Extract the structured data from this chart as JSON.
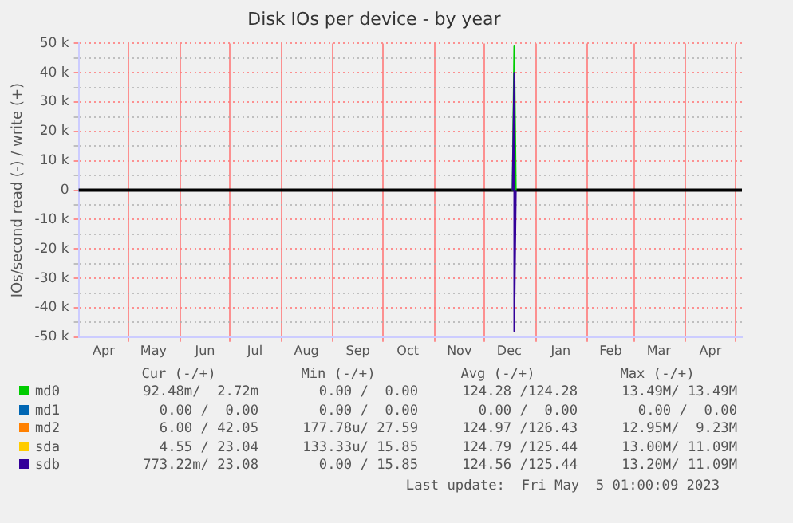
{
  "chart_data": {
    "type": "line",
    "title": "Disk IOs per device - by year",
    "ylabel": "IOs/second read (-) / write (+)",
    "xlim": [
      "2022-04-01",
      "2023-05-05"
    ],
    "xticks": [
      {
        "value": "2022-05-01",
        "label": null
      },
      {
        "value": "2022-06-01",
        "label": null
      },
      {
        "value": "2022-07-01",
        "label": null
      },
      {
        "value": "2022-08-01",
        "label": null
      },
      {
        "value": "2022-09-01",
        "label": null
      },
      {
        "value": "2022-10-01",
        "label": null
      },
      {
        "value": "2022-11-01",
        "label": null
      },
      {
        "value": "2022-12-01",
        "label": null
      },
      {
        "value": "2023-01-01",
        "label": null
      },
      {
        "value": "2023-02-01",
        "label": null
      },
      {
        "value": "2023-03-01",
        "label": null
      },
      {
        "value": "2023-04-01",
        "label": null
      },
      {
        "value": "2023-05-01",
        "label": null
      },
      {
        "value": "2022-04-16",
        "label": "Apr"
      },
      {
        "value": "2022-05-16",
        "label": "May"
      },
      {
        "value": "2022-06-16",
        "label": "Jun"
      },
      {
        "value": "2022-07-16",
        "label": "Jul"
      },
      {
        "value": "2022-08-16",
        "label": "Aug"
      },
      {
        "value": "2022-09-16",
        "label": "Sep"
      },
      {
        "value": "2022-10-16",
        "label": "Oct"
      },
      {
        "value": "2022-11-16",
        "label": "Nov"
      },
      {
        "value": "2022-12-16",
        "label": "Dec"
      },
      {
        "value": "2023-01-16",
        "label": "Jan"
      },
      {
        "value": "2023-02-15",
        "label": "Feb"
      },
      {
        "value": "2023-03-16",
        "label": "Mar"
      },
      {
        "value": "2023-04-16",
        "label": "Apr"
      }
    ],
    "ylim": [
      -50000,
      50000
    ],
    "yticks": [
      {
        "value": -50000,
        "label": "-50 k"
      },
      {
        "value": -45000,
        "label": null
      },
      {
        "value": -40000,
        "label": "-40 k"
      },
      {
        "value": -35000,
        "label": null
      },
      {
        "value": -30000,
        "label": "-30 k"
      },
      {
        "value": -25000,
        "label": null
      },
      {
        "value": -20000,
        "label": "-20 k"
      },
      {
        "value": -15000,
        "label": null
      },
      {
        "value": -10000,
        "label": "-10 k"
      },
      {
        "value": -5000,
        "label": null
      },
      {
        "value": 0,
        "label": "0"
      },
      {
        "value": 5000,
        "label": null
      },
      {
        "value": 10000,
        "label": "10 k"
      },
      {
        "value": 15000,
        "label": null
      },
      {
        "value": 20000,
        "label": "20 k"
      },
      {
        "value": 25000,
        "label": null
      },
      {
        "value": 30000,
        "label": "30 k"
      },
      {
        "value": 35000,
        "label": null
      },
      {
        "value": 40000,
        "label": "40 k"
      },
      {
        "value": 45000,
        "label": null
      },
      {
        "value": 50000,
        "label": "50 k"
      }
    ],
    "grid": true,
    "legend": "bottom",
    "series": [
      {
        "name": "md0",
        "color": "#00cc00",
        "x": [
          "2022-12-18",
          "2022-12-19",
          "2022-12-20"
        ],
        "values": [
          0,
          49000,
          0
        ]
      },
      {
        "name": "md1",
        "color": "#0066b3"
      },
      {
        "name": "md2",
        "color": "#ff8000"
      },
      {
        "name": "sda",
        "color": "#ffcc00"
      },
      {
        "name": "sdb",
        "color": "#330099",
        "x": [
          "2022-12-18",
          "2022-12-19",
          "2022-12-19",
          "2022-12-20"
        ],
        "values": [
          0,
          40000,
          -48000,
          0
        ]
      }
    ],
    "ref_lines": [
      {
        "axis": "y",
        "value": 0,
        "color": "#000000"
      }
    ],
    "annotations": [
      "Cur (-/+)",
      "Min (-/+)",
      "Avg (-/+)",
      "Max (-/+)",
      "92.48m/  2.72m",
      "0.00 /  0.00",
      "124.28 /124.28",
      "13.49M/ 13.49M",
      "0.00 /  0.00",
      "0.00 /  0.00",
      "0.00 /  0.00",
      "0.00 /  0.00",
      "6.00 / 42.05",
      "177.78u/ 27.59",
      "124.97 /126.43",
      "12.95M/  9.23M",
      "4.55 / 23.04",
      "133.33u/ 15.85",
      "124.79 /125.44",
      "13.00M/ 11.09M",
      "773.22m/ 23.08",
      "0.00 / 15.85",
      "124.56 /125.44",
      "13.20M/ 11.09M",
      "Last update:  Fri May  5 01:00:09 2023"
    ]
  }
}
